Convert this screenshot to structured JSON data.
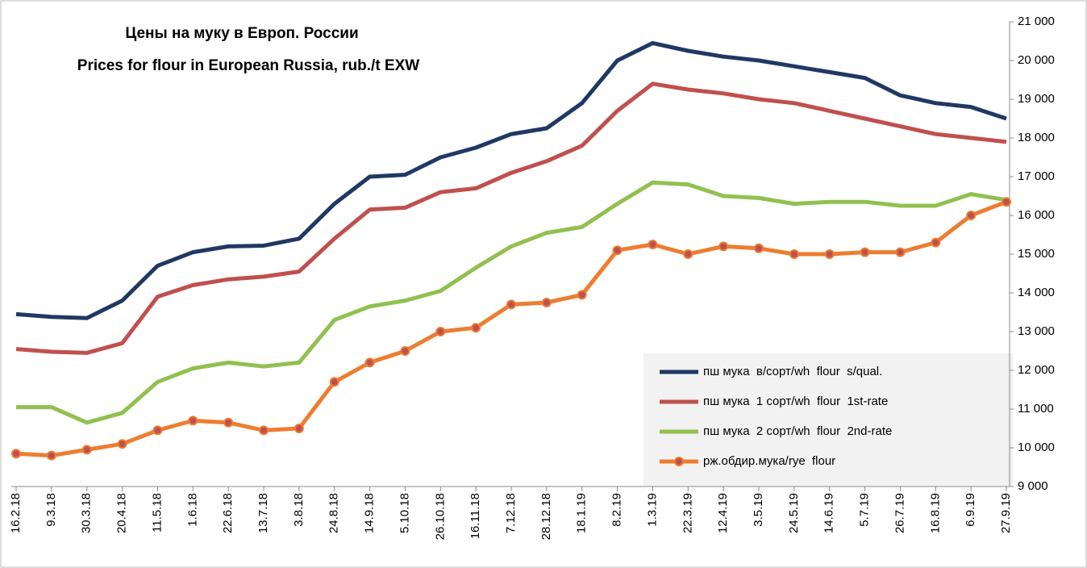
{
  "chart_data": {
    "type": "line",
    "title": "Цены на муку в Европ. России",
    "subtitle": "Prices for flour in European Russia, rub./t EXW",
    "categories": [
      "16.2.18",
      "9.3.18",
      "30.3.18",
      "20.4.18",
      "11.5.18",
      "1.6.18",
      "22.6.18",
      "13.7.18",
      "3.8.18",
      "24.8.18",
      "14.9.18",
      "5.10.18",
      "26.10.18",
      "16.11.18",
      "7.12.18",
      "28.12.18",
      "18.1.19",
      "8.2.19",
      "1.3.19",
      "22.3.19",
      "12.4.19",
      "3.5.19",
      "24.5.19",
      "14.6.19",
      "5.7.19",
      "26.7.19",
      "16.8.19",
      "6.9.19",
      "27.9.19"
    ],
    "series": [
      {
        "name": "пш мука  в/сорт/wh  flour  s/qual.",
        "color": "#1f3864",
        "marker": false,
        "values": [
          13450,
          13380,
          13350,
          13800,
          14700,
          15050,
          15200,
          15220,
          15400,
          16300,
          17000,
          17050,
          17500,
          17750,
          18100,
          18250,
          18900,
          20000,
          20450,
          20250,
          20100,
          20000,
          19850,
          19700,
          19550,
          19100,
          18900,
          18800,
          18500
        ]
      },
      {
        "name": "пш мука  1 сорт/wh  flour  1st-rate",
        "color": "#c0504d",
        "marker": false,
        "values": [
          12550,
          12480,
          12450,
          12700,
          13900,
          14200,
          14350,
          14420,
          14550,
          15400,
          16150,
          16200,
          16600,
          16700,
          17100,
          17400,
          17800,
          18700,
          19400,
          19250,
          19150,
          19000,
          18900,
          18700,
          18500,
          18300,
          18100,
          18000,
          17900
        ]
      },
      {
        "name": "пш мука  2 сорт/wh  flour  2nd-rate",
        "color": "#92c050",
        "marker": false,
        "values": [
          11050,
          11050,
          10650,
          10900,
          11700,
          12050,
          12200,
          12100,
          12200,
          13300,
          13650,
          13800,
          14050,
          14650,
          15200,
          15550,
          15700,
          16300,
          16850,
          16800,
          16500,
          16450,
          16300,
          16350,
          16350,
          16250,
          16250,
          16550,
          16400
        ]
      },
      {
        "name": "рж.обдир.мука/rye  flour",
        "color": "#ed7d31",
        "marker": true,
        "values": [
          9850,
          9800,
          9950,
          10100,
          10450,
          10700,
          10650,
          10450,
          10500,
          11700,
          12200,
          12500,
          13000,
          13100,
          13700,
          13750,
          13950,
          15100,
          15250,
          15000,
          15200,
          15150,
          15000,
          15000,
          15050,
          15050,
          15300,
          16000,
          16350
        ]
      }
    ],
    "ylim": [
      9000,
      21000
    ],
    "yticks": [
      {
        "value": 9000,
        "label": "9 000"
      },
      {
        "value": 10000,
        "label": "10 000"
      },
      {
        "value": 11000,
        "label": "11 000"
      },
      {
        "value": 12000,
        "label": "12 000"
      },
      {
        "value": 13000,
        "label": "13 000"
      },
      {
        "value": 14000,
        "label": "14 000"
      },
      {
        "value": 15000,
        "label": "15 000"
      },
      {
        "value": 16000,
        "label": "16 000"
      },
      {
        "value": 17000,
        "label": "17 000"
      },
      {
        "value": 18000,
        "label": "18 000"
      },
      {
        "value": 19000,
        "label": "19 000"
      },
      {
        "value": 20000,
        "label": "20 000"
      },
      {
        "value": 21000,
        "label": "21 000"
      }
    ],
    "grid": false
  }
}
